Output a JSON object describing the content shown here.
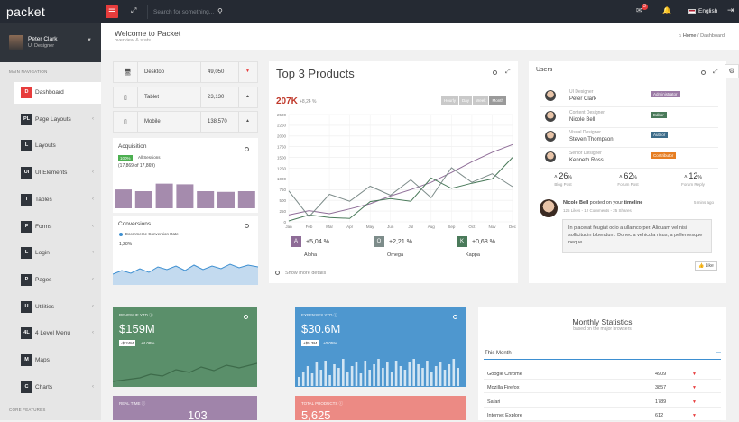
{
  "topbar": {
    "logo": "packet",
    "search_placeholder": "Search for something...",
    "mail_count": "3",
    "language": "English"
  },
  "user": {
    "name": "Peter Clark",
    "role": "UI Designer"
  },
  "nav": {
    "header": "MAIN NAVIGATION",
    "footer": "CORE FEATURES",
    "items": [
      {
        "abbr": "D",
        "label": "Dashboard"
      },
      {
        "abbr": "PL",
        "label": "Page Layouts"
      },
      {
        "abbr": "L",
        "label": "Layouts"
      },
      {
        "abbr": "UI",
        "label": "UI Elements"
      },
      {
        "abbr": "T",
        "label": "Tables"
      },
      {
        "abbr": "F",
        "label": "Forms"
      },
      {
        "abbr": "L",
        "label": "Login"
      },
      {
        "abbr": "P",
        "label": "Pages"
      },
      {
        "abbr": "U",
        "label": "Utilities"
      },
      {
        "abbr": "4L",
        "label": "4 Level Menu"
      },
      {
        "abbr": "M",
        "label": "Maps"
      },
      {
        "abbr": "C",
        "label": "Charts"
      }
    ]
  },
  "header": {
    "title": "Welcome to Packet",
    "subtitle": "overview & stats",
    "bc_home": "Home",
    "bc_sep": "/",
    "bc_current": "Dashboard"
  },
  "devices": [
    {
      "icon": "desktop-icon",
      "label": "Desktop",
      "value": "49,050",
      "trend": "down"
    },
    {
      "icon": "tablet-icon",
      "label": "Tablet",
      "value": "23,130",
      "trend": "up"
    },
    {
      "icon": "mobile-icon",
      "label": "Mobile",
      "value": "138,570",
      "trend": "up"
    }
  ],
  "acquisition": {
    "title": "Acquisition",
    "pct": "100%",
    "label": "All Sessions",
    "detail": "(17,869 of 17,869)",
    "bars": [
      0.55,
      0.5,
      0.72,
      0.7,
      0.5,
      0.48,
      0.5
    ]
  },
  "conversions": {
    "title": "Conversions",
    "legend": "Ecommerce Conversion Rate",
    "value": "1,28%",
    "colors": {
      "line": "#3d8fd1",
      "fill": "#a9cbe8"
    }
  },
  "products": {
    "title": "Top 3 Products",
    "value": "207K",
    "change": "+8,24 %",
    "tabs": [
      "Hourly",
      "Day",
      "Week",
      "Month"
    ],
    "active_tab": "Month",
    "show_more": "Show more details",
    "kpis": [
      {
        "letter": "A",
        "value": "+5,04 %",
        "name": "Alpha",
        "color": "#8e6c97"
      },
      {
        "letter": "O",
        "value": "+2,21 %",
        "name": "Omega",
        "color": "#7d8c8a"
      },
      {
        "letter": "K",
        "value": "+0,68 %",
        "name": "Kappa",
        "color": "#4a7a5a"
      }
    ]
  },
  "chart_data": {
    "type": "line",
    "x": [
      "Jan",
      "Feb",
      "Mar",
      "Apr",
      "May",
      "Jun",
      "Jul",
      "Aug",
      "Sep",
      "Oct",
      "Nov",
      "Dec"
    ],
    "ylim": [
      0,
      2500
    ],
    "yticks": [
      0,
      250,
      500,
      750,
      1000,
      1250,
      1500,
      1750,
      2000,
      2250,
      2500
    ],
    "series": [
      {
        "color": "#8e6c97",
        "values": [
          160,
          260,
          190,
          300,
          420,
          600,
          750,
          920,
          1150,
          1400,
          1620,
          1800
        ]
      },
      {
        "color": "#4a7a5a",
        "values": [
          20,
          160,
          100,
          80,
          470,
          540,
          480,
          1020,
          780,
          900,
          1000,
          1500
        ]
      },
      {
        "color": "#7d8c8a",
        "values": [
          720,
          120,
          640,
          480,
          830,
          620,
          980,
          560,
          1260,
          920,
          1120,
          820
        ]
      }
    ]
  },
  "users": {
    "title": "Users",
    "list": [
      {
        "role": "UI Designer",
        "name": "Peter Clark",
        "badge": "Administrator",
        "badge_color": "#9b7aa5"
      },
      {
        "role": "Content Designer",
        "name": "Nicole Bell",
        "badge": "Editor",
        "badge_color": "#4a7a5a"
      },
      {
        "role": "Visual Designer",
        "name": "Steven Thompson",
        "badge": "Author",
        "badge_color": "#3d6c8a"
      },
      {
        "role": "Senior Designer",
        "name": "Kenneth Ross",
        "badge": "Contributor",
        "badge_color": "#e67e22"
      }
    ],
    "stats": [
      {
        "value": "26",
        "unit": "%",
        "label": "Blog Post"
      },
      {
        "value": "62",
        "unit": "%",
        "label": "Forum Post"
      },
      {
        "value": "12",
        "unit": "%",
        "label": "Forum Reply"
      }
    ],
    "post": {
      "author": "Nicole Bell",
      "action": "posted on your",
      "target": "timeline",
      "time": "5 mins ago",
      "meta": "125 Likes - 12 Comments - 25 Shares",
      "text": "In placerat feugiat odio a ullamcorper. Aliquam vel nisi sollicitudin bibendum. Donec a vehicula risus, a pellentesque neque.",
      "like": "Like"
    }
  },
  "panels": [
    {
      "label": "REVENUE YTD ⓘ",
      "value": "$159M",
      "chip1": "-$.24M",
      "chip2": "+4.08%",
      "color": "#5a8f6a"
    },
    {
      "label": "EXPENSES YTD ⓘ",
      "value": "$30.6M",
      "chip1": "+$5.3M",
      "chip2": "+0.05%",
      "color": "#4e97cf"
    },
    {
      "label": "REAL TIME ⓘ",
      "value": "103",
      "color": "#a084aa"
    },
    {
      "label": "TOTAL PRODUCTS ⓘ",
      "value": "5,625",
      "color": "#ec8a84"
    }
  ],
  "monthly": {
    "title": "Monthly Statistics",
    "subtitle": "based on the major browsers",
    "tab": "This Month",
    "rows": [
      {
        "browser": "Google Chrome",
        "value": "4909"
      },
      {
        "browser": "Mozilla Firefox",
        "value": "3857"
      },
      {
        "browser": "Safari",
        "value": "1789"
      },
      {
        "browser": "Internet Explore",
        "value": "612"
      }
    ]
  }
}
